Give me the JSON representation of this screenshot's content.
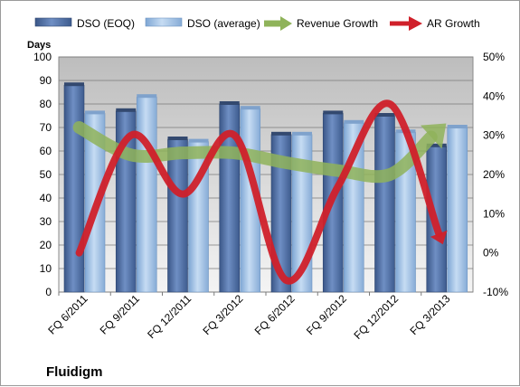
{
  "chart_data": {
    "type": "bar",
    "title": "",
    "company": "Fluidigm",
    "categories": [
      "FQ 6/2011",
      "FQ 9/2011",
      "FQ 12/2011",
      "FQ 3/2012",
      "FQ 6/2012",
      "FQ 9/2012",
      "FQ 12/2012",
      "FQ 3/2013"
    ],
    "y_left": {
      "label": "Days",
      "range": [
        0,
        100
      ],
      "ticks": [
        "0",
        "10",
        "20",
        "30",
        "40",
        "50",
        "60",
        "70",
        "80",
        "90",
        "100"
      ]
    },
    "y_right": {
      "range": [
        -10,
        50
      ],
      "ticks": [
        "-10%",
        "0%",
        "10%",
        "20%",
        "30%",
        "40%",
        "50%"
      ]
    },
    "grid": true,
    "legend_position": "top",
    "series": [
      {
        "name": "DSO (EOQ)",
        "type": "bar",
        "axis": "left",
        "color": "#4f6fa6",
        "values": [
          88,
          77,
          65,
          80,
          67,
          76,
          75,
          62
        ]
      },
      {
        "name": "DSO (average)",
        "type": "bar",
        "axis": "left",
        "color": "#a9c8ea",
        "values": [
          76,
          83,
          64,
          78,
          67,
          72,
          68,
          70
        ]
      },
      {
        "name": "Revenue Growth",
        "type": "line",
        "axis": "right",
        "color": "#8fb35a",
        "values": [
          32,
          25,
          25.5,
          25.5,
          23,
          21,
          20,
          32
        ]
      },
      {
        "name": "AR Growth",
        "type": "line",
        "axis": "right",
        "color": "#d0202a",
        "values": [
          0,
          30,
          15,
          30,
          -7,
          17,
          38,
          3
        ]
      }
    ]
  }
}
